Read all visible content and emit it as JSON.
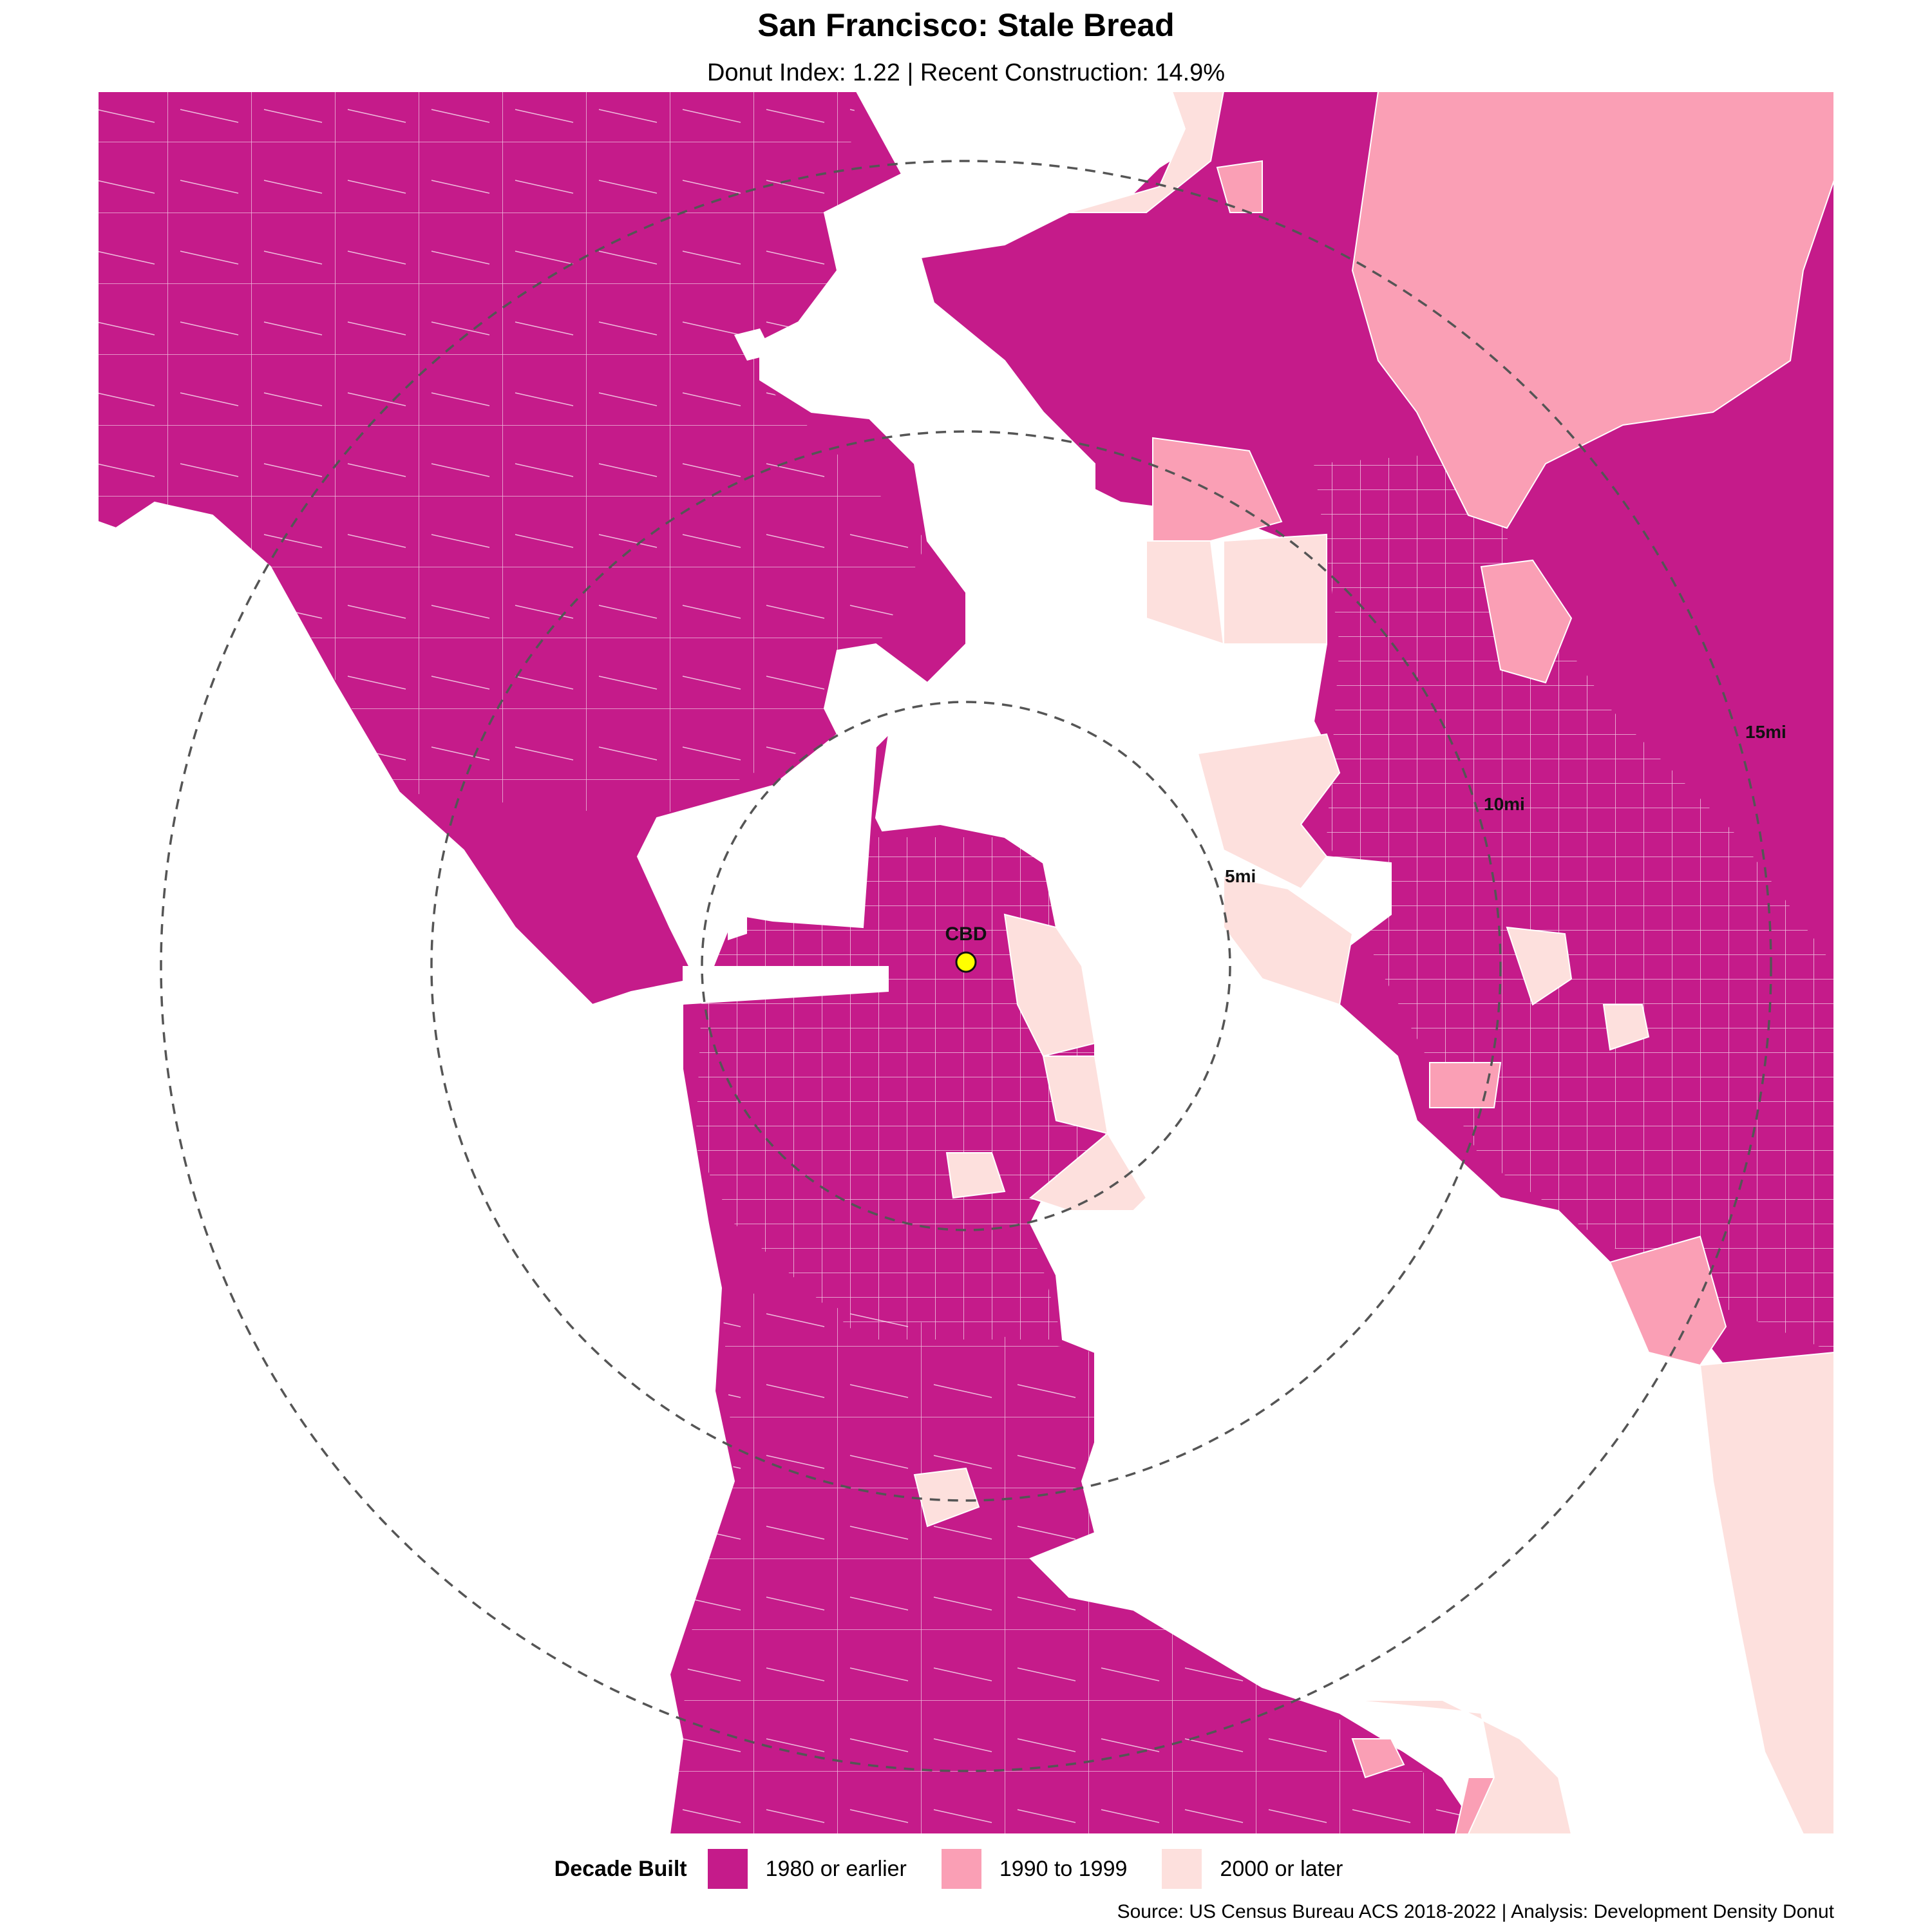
{
  "title": "San Francisco: Stale Bread",
  "subtitle": "Donut Index: 1.22 | Recent Construction: 14.9%",
  "colors": {
    "c1980": "#c51b8a",
    "c1990": "#fa9fb5",
    "c2000": "#fde0dd",
    "water": "#ffffff",
    "tract_line": "#ffffff",
    "ring": "#555555",
    "cbd_marker": "#ffff00"
  },
  "center": {
    "label": "CBD"
  },
  "rings": [
    {
      "label": "5mi",
      "miles": 5
    },
    {
      "label": "10mi",
      "miles": 10
    },
    {
      "label": "15mi",
      "miles": 15
    }
  ],
  "legend": {
    "title": "Decade Built",
    "items": [
      {
        "label": "1980 or earlier",
        "color": "#c51b8a"
      },
      {
        "label": "1990 to 1999",
        "color": "#fa9fb5"
      },
      {
        "label": "2000 or later",
        "color": "#fde0dd"
      }
    ]
  },
  "source": "Source: US Census Bureau ACS 2018-2022 | Analysis: Development Density Donut"
}
